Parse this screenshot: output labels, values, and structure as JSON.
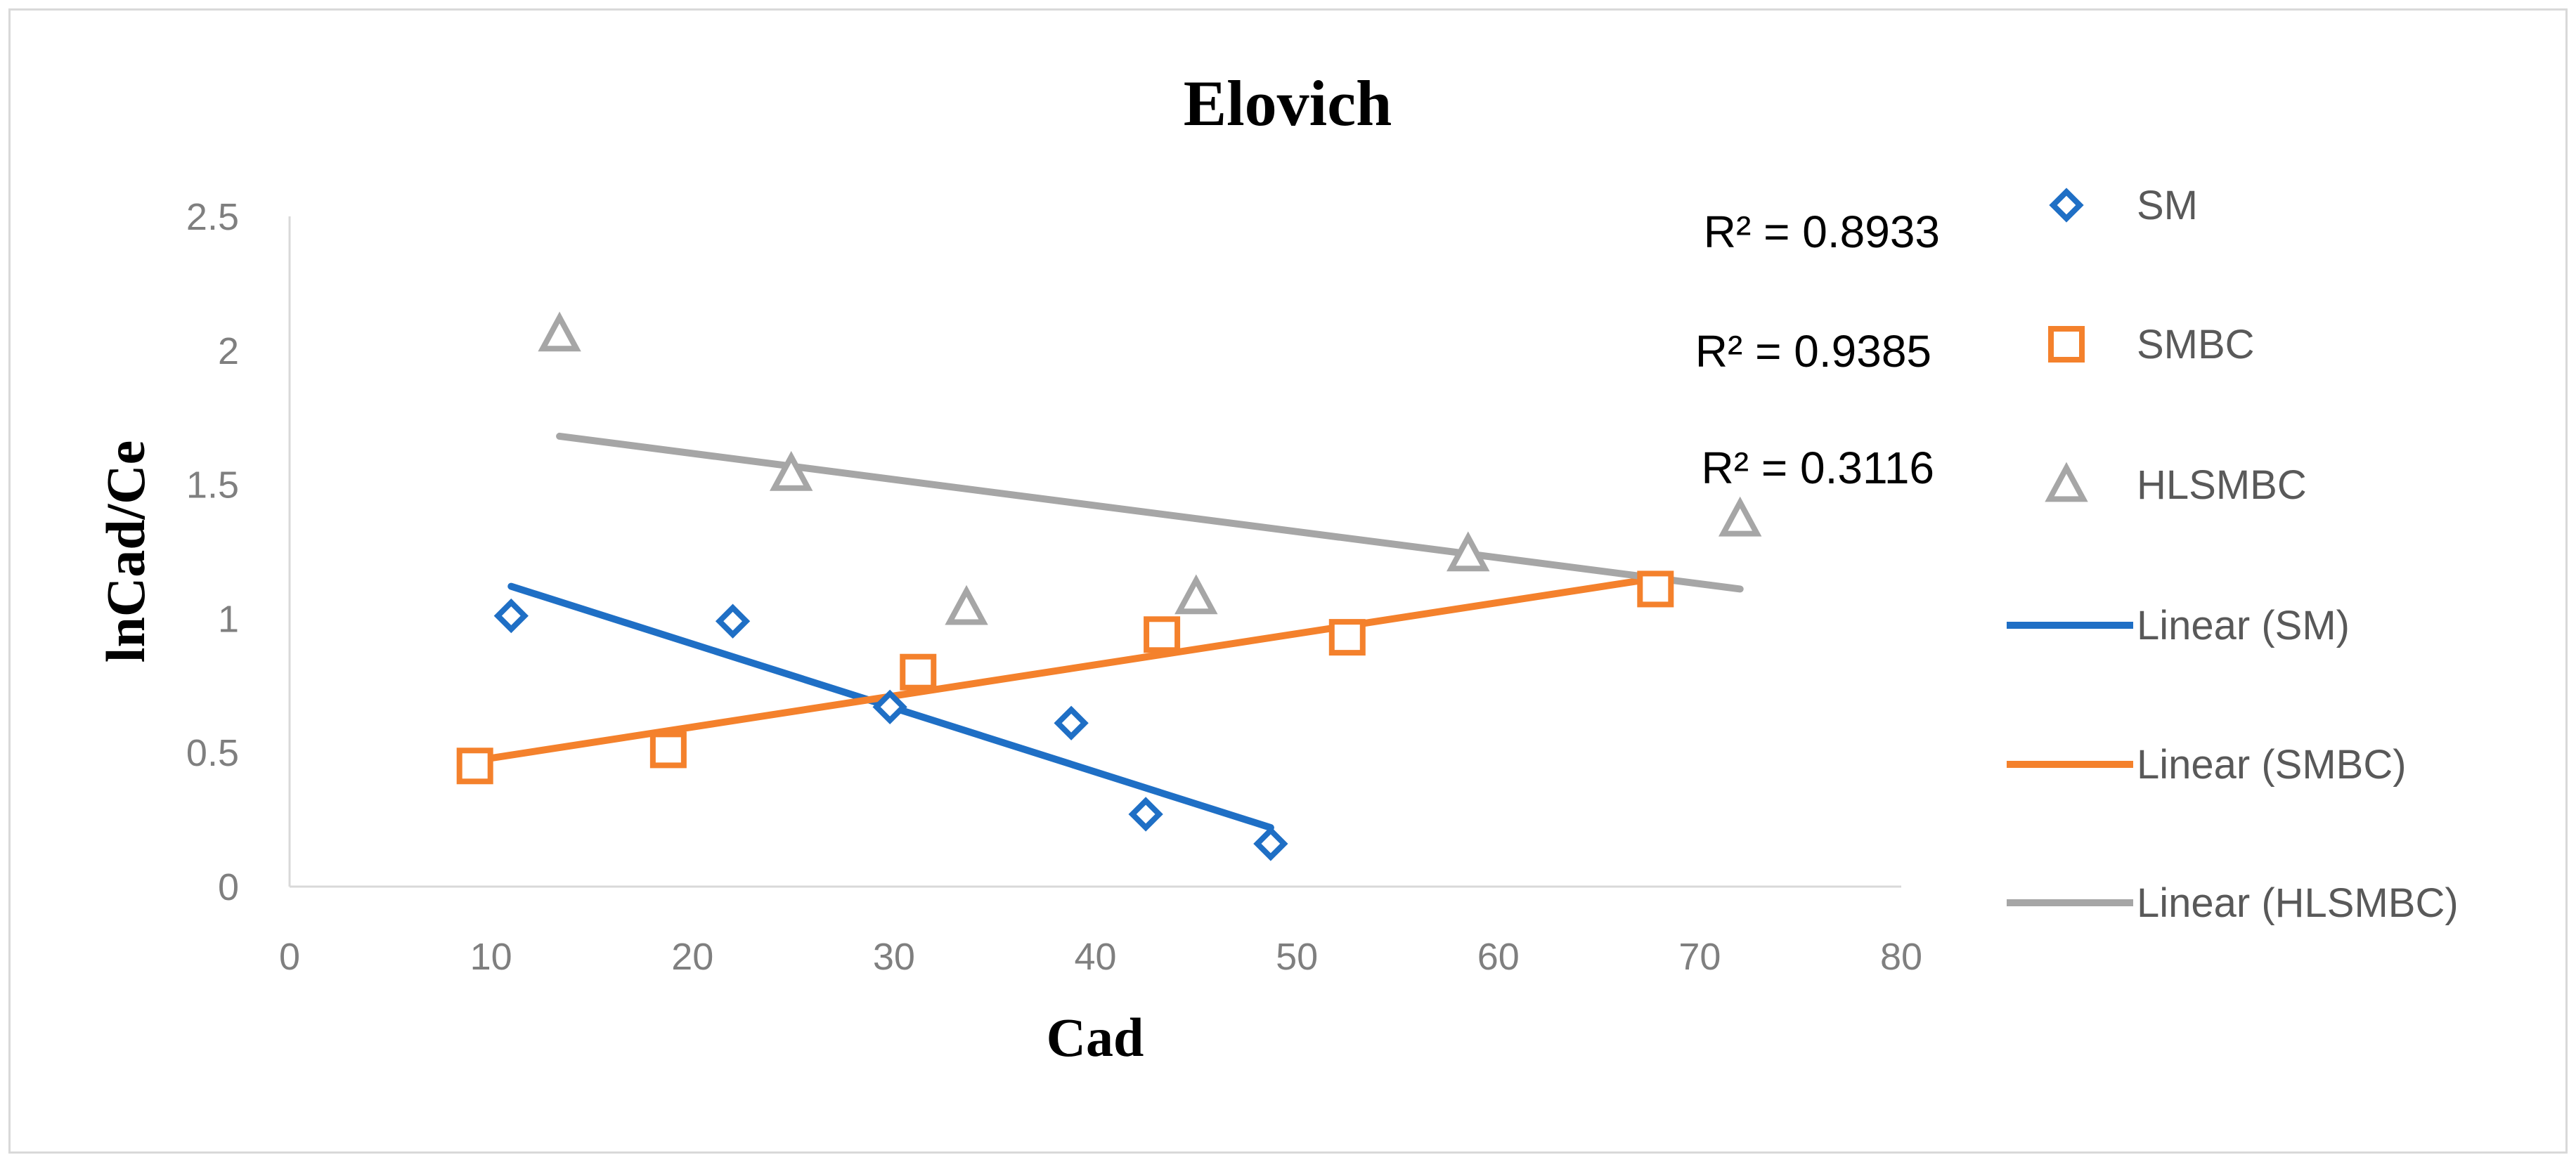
{
  "chart_data": {
    "type": "scatter",
    "title": "Elovich",
    "xlabel": "Cad",
    "ylabel": "lnCad/Ce",
    "xlim": [
      0,
      80
    ],
    "ylim": [
      0,
      2.5
    ],
    "xticks": [
      "0",
      "10",
      "20",
      "30",
      "40",
      "50",
      "60",
      "70",
      "80"
    ],
    "yticks": [
      "0",
      "0.5",
      "1",
      "1.5",
      "2",
      "2.5"
    ],
    "grid": false,
    "legend_position": "right",
    "series": [
      {
        "name": "SM",
        "marker": "diamond",
        "color": "#1f6fc5",
        "points": [
          [
            11,
            1.01
          ],
          [
            22,
            0.99
          ],
          [
            29.8,
            0.67
          ],
          [
            38.8,
            0.61
          ],
          [
            42.5,
            0.27
          ],
          [
            48.7,
            0.16
          ]
        ],
        "trendline": {
          "name": "Linear (SM)",
          "x": [
            11,
            48.7
          ],
          "y": [
            1.12,
            0.22
          ]
        }
      },
      {
        "name": "SMBC",
        "marker": "square",
        "color": "#f4812c",
        "points": [
          [
            9.2,
            0.45
          ],
          [
            18.8,
            0.51
          ],
          [
            31.2,
            0.8
          ],
          [
            43.3,
            0.94
          ],
          [
            52.5,
            0.93
          ],
          [
            67.8,
            1.11
          ]
        ],
        "trendline": {
          "name": "Linear (SMBC)",
          "x": [
            9.2,
            67.8
          ],
          "y": [
            0.47,
            1.15
          ]
        }
      },
      {
        "name": "HLSMBC",
        "marker": "triangle",
        "color": "#a6a6a6",
        "points": [
          [
            13.4,
            2.06
          ],
          [
            24.9,
            1.54
          ],
          [
            33.6,
            1.04
          ],
          [
            45,
            1.08
          ],
          [
            58.5,
            1.24
          ],
          [
            72,
            1.37
          ]
        ],
        "trendline": {
          "name": "Linear (HLSMBC)",
          "x": [
            13.4,
            72
          ],
          "y": [
            1.68,
            1.11
          ]
        }
      }
    ],
    "annotations": [
      "R² = 0.8933",
      "R² = 0.9385",
      "R² = 0.3116"
    ],
    "legend": [
      "SM",
      "SMBC",
      "HLSMBC",
      "Linear (SM)",
      "Linear (SMBC)",
      "Linear (HLSMBC)"
    ]
  }
}
